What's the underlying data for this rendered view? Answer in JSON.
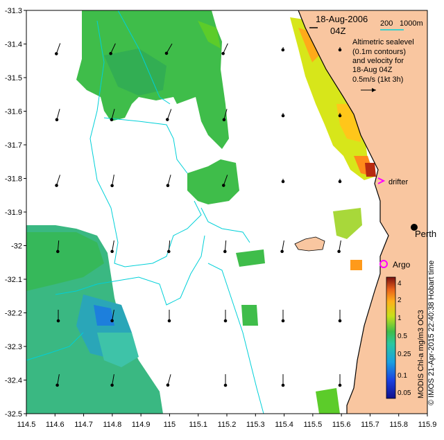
{
  "map": {
    "date": "18-Aug-2006",
    "time": "04Z",
    "depth_labels": [
      "200",
      "1000m"
    ],
    "caption_lines": [
      "Altimetric sealevel",
      "(0.1m contours)",
      "and velocity for",
      "18-Aug 04Z",
      "0.5m/s (1kt 3h)"
    ],
    "places": {
      "city": "Perth",
      "drifter": "drifter",
      "argo": "Argo"
    },
    "lat_ticks": [
      "-31.3",
      "-31.4",
      "-31.5",
      "-31.6",
      "-31.7",
      "-31.8",
      "-31.9",
      "-32",
      "-32.1",
      "-32.2",
      "-32.3",
      "-32.4",
      "-32.5"
    ],
    "lon_ticks": [
      "114.5",
      "114.6",
      "114.7",
      "114.8",
      "114.9",
      "115",
      "115.1",
      "115.2",
      "115.3",
      "115.4",
      "115.5",
      "115.6",
      "115.7",
      "115.8",
      "115.9"
    ],
    "colorbar_ticks": [
      "4",
      "2",
      "1",
      "0.5",
      "0.25",
      "0.1",
      "0.05"
    ],
    "colorbar_label": "MODIS Chl-a mg/m3 OC3",
    "credit": "© IMOS 21-Apr-2015 22:40:38 Hobart time",
    "colors": {
      "land": "#f9c6a0",
      "contour": "#00d0d8",
      "drifter": "#ff00ff",
      "coast": "#000000"
    }
  }
}
